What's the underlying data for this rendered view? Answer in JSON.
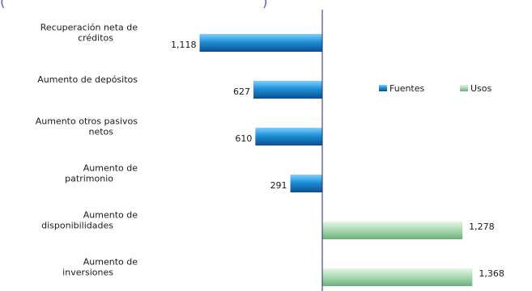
{
  "chart_data": {
    "type": "bar",
    "orientation": "horizontal",
    "categories": [
      [
        "Recuperación neta de",
        "créditos"
      ],
      [
        "Aumento de depósitos"
      ],
      [
        "Aumento otros pasivos",
        "netos"
      ],
      [
        "Aumento de",
        "patrimonio"
      ],
      [
        "Aumento de",
        "disponibilidades"
      ],
      [
        "Aumento de",
        "inversiones"
      ]
    ],
    "series": [
      {
        "name": "Fuentes",
        "color": "#1f8fd6",
        "values": [
          1118,
          627,
          610,
          291,
          null,
          null
        ],
        "labels": [
          "1,118",
          "627",
          "610",
          "291",
          "",
          ""
        ]
      },
      {
        "name": "Usos",
        "color": "#a8d8b0",
        "values": [
          null,
          null,
          null,
          null,
          1278,
          1368
        ],
        "labels": [
          "",
          "",
          "",
          "",
          "1,278",
          "1,368"
        ]
      }
    ],
    "legend_position": "right",
    "grid": false,
    "title_fragment": "(",
    "title_fragment_right": ")"
  }
}
